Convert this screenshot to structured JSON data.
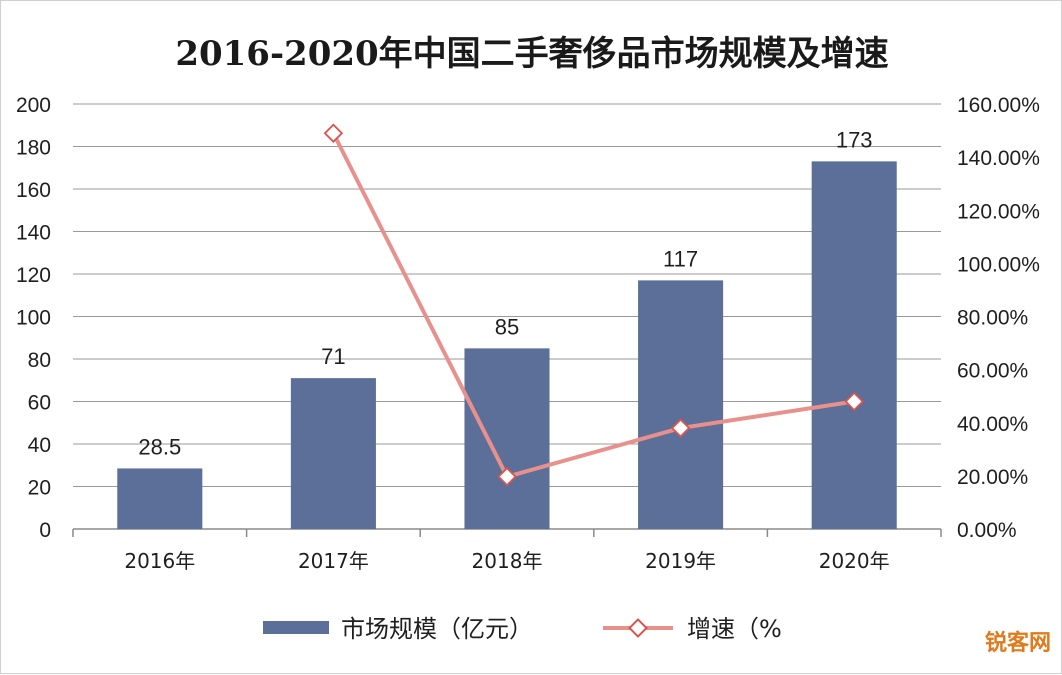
{
  "chart_data": {
    "type": "bar",
    "title": "2016-2020年中国二手奢侈品市场规模及增速",
    "categories": [
      "2016年",
      "2017年",
      "2018年",
      "2019年",
      "2020年"
    ],
    "series": [
      {
        "name": "市场规模（亿元）",
        "type": "bar",
        "axis": "left",
        "color": "#5b6f98",
        "values": [
          28.5,
          71,
          85,
          117,
          173
        ],
        "data_labels": [
          "28.5",
          "71",
          "85",
          "117",
          "173"
        ]
      },
      {
        "name": "增速（%",
        "type": "line",
        "axis": "right",
        "color": "#e8918c",
        "marker": "diamond-open",
        "values": [
          null,
          1.49,
          0.197,
          0.38,
          0.48
        ]
      }
    ],
    "ylim_left": [
      0,
      200
    ],
    "yticks_left": [
      "0",
      "20",
      "40",
      "60",
      "80",
      "100",
      "120",
      "140",
      "160",
      "180",
      "200"
    ],
    "ylim_right": [
      0,
      1.6
    ],
    "yticks_right": [
      "0.00%",
      "20.00%",
      "40.00%",
      "60.00%",
      "80.00%",
      "100.00%",
      "120.00%",
      "140.00%",
      "160.00%"
    ],
    "grid": true,
    "legend_position": "bottom"
  },
  "watermark": {
    "text": "锐客网",
    "color": "#e07a1b"
  },
  "colors": {
    "grid": "#9a9a9a",
    "axis": "#8a8a8a"
  }
}
